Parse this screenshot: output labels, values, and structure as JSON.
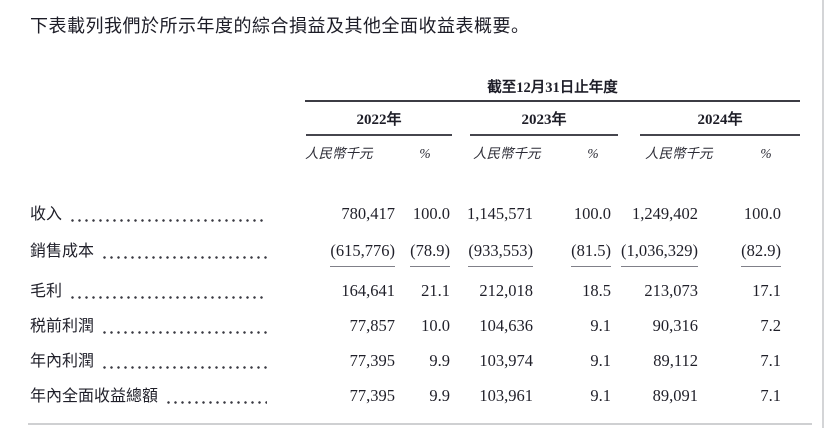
{
  "page": {
    "intro_text": "下表載列我們於所示年度的綜合損益及其他全面收益表概要。"
  },
  "table": {
    "period_header": "截至12月31日止年度",
    "unit_label": "人民幣千元",
    "percent_label": "%",
    "years": [
      "2022年",
      "2023年",
      "2024年"
    ],
    "rows": [
      {
        "label": "收入",
        "values": [
          "780,417",
          "100.0",
          "1,145,571",
          "100.0",
          "1,249,402",
          "100.0"
        ]
      },
      {
        "label": "銷售成本",
        "values": [
          "(615,776)",
          "(78.9)",
          "(933,553)",
          "(81.5)",
          "(1,036,329)",
          "(82.9)"
        ]
      },
      {
        "label": "毛利",
        "values": [
          "164,641",
          "21.1",
          "212,018",
          "18.5",
          "213,073",
          "17.1"
        ]
      },
      {
        "label": "税前利潤",
        "values": [
          "77,857",
          "10.0",
          "104,636",
          "9.1",
          "90,316",
          "7.2"
        ]
      },
      {
        "label": "年內利潤",
        "values": [
          "77,395",
          "9.9",
          "103,974",
          "9.1",
          "89,112",
          "7.1"
        ]
      },
      {
        "label": "年內全面收益總額",
        "values": [
          "77,395",
          "9.9",
          "103,961",
          "9.1",
          "89,091",
          "7.1"
        ]
      }
    ]
  }
}
